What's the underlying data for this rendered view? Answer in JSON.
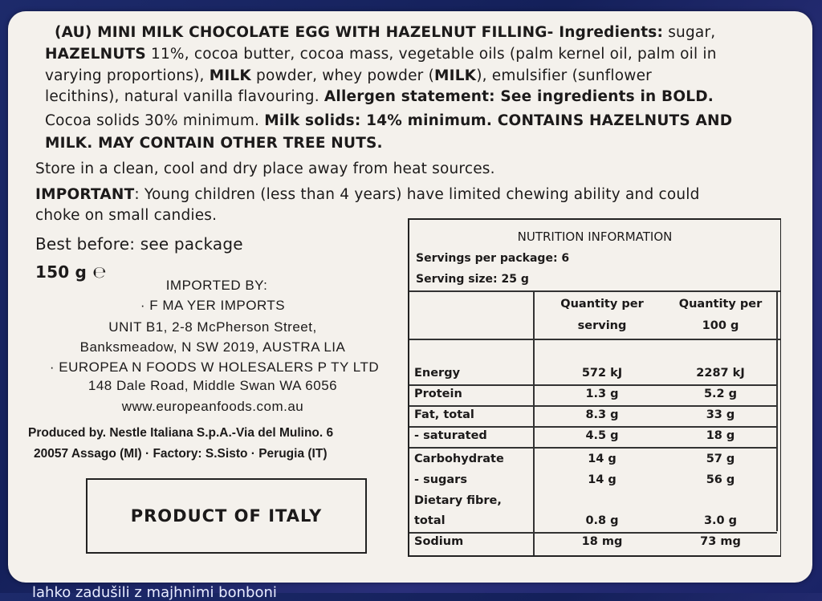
{
  "ingredients_lines": [
    [
      {
        "t": "(AU) MINI MILK CHOCOLATE EGG WITH HAZELNUT FILLING- Ingredients:",
        "b": true
      },
      {
        "t": " sugar,",
        "b": false
      }
    ],
    [
      {
        "t": "HAZELNUTS",
        "b": true
      },
      {
        "t": " 11%, cocoa butter, cocoa mass, vegetable oils (palm kernel oil, palm oil in",
        "b": false
      }
    ],
    [
      {
        "t": "varying proportions), ",
        "b": false
      },
      {
        "t": "MILK",
        "b": true
      },
      {
        "t": " powder, whey powder (",
        "b": false
      },
      {
        "t": "MILK",
        "b": true
      },
      {
        "t": "), emulsifier (sunflower",
        "b": false
      }
    ],
    [
      {
        "t": "lecithins), natural vanilla flavouring. ",
        "b": false
      },
      {
        "t": "Allergen statement: See ingredients in BOLD.",
        "b": true
      }
    ],
    [
      {
        "t": "Cocoa solids 30% minimum. ",
        "b": false
      },
      {
        "t": "Milk solids: 14% minimum. CONTAINS HAZELNUTS AND",
        "b": true
      }
    ],
    [
      {
        "t": "MILK. MAY CONTAIN OTHER TREE NUTS.",
        "b": true
      }
    ],
    [
      {
        "t": "Store in a clean, cool and dry place away from heat sources.",
        "b": false
      }
    ],
    [
      {
        "t": "IMPORTANT",
        "b": true
      },
      {
        "t": ": Young children (less than 4 years) have limited chewing ability and could",
        "b": false
      }
    ],
    [
      {
        "t": "choke on small candies.",
        "b": false
      }
    ],
    [
      {
        "t": "Best before: see package",
        "b": false
      }
    ],
    [
      {
        "t": "150 g ℮",
        "b": true
      }
    ]
  ],
  "importer_lines": [
    "IMPORTED BY:",
    "· F MA YER IMPORTS",
    "UNIT B1, 2-8 McPherson Street,",
    "Banksmeadow, N SW 2019, AUSTRA LIA",
    "· EUROPEA N FOODS W HOLESALERS P TY LTD",
    "148 Dale Road, Middle Swan WA 6056",
    "www.europeanfoods.com.au"
  ],
  "producer_lines": [
    "Produced by. Nestle Italiana S.p.A.-Via del Mulino. 6",
    "20057 Assago (MI) · Factory: S.Sisto · Perugia (IT)"
  ],
  "origin": "PRODUCT OF ITALY",
  "nutrition": {
    "title": "NUTRITION INFORMATION",
    "servings_per_package": "Servings per package: 6",
    "serving_size": "Serving size: 25 g",
    "col_per_serving": [
      "Quantity per",
      "serving"
    ],
    "col_per_100g": [
      "Quantity per",
      "100 g"
    ],
    "rows": [
      {
        "name": "Energy",
        "serving": "572 kJ",
        "per100": "2287 kJ"
      },
      {
        "name": "Protein",
        "serving": "1.3 g",
        "per100": "5.2 g"
      },
      {
        "name": "Fat, total",
        "serving": "8.3 g",
        "per100": "33 g"
      },
      {
        "name": "- saturated",
        "serving": "4.5 g",
        "per100": "18 g"
      },
      {
        "name": "Carbohydrate",
        "serving": "14 g",
        "per100": "57 g"
      },
      {
        "name": "- sugars",
        "serving": "14 g",
        "per100": "56 g"
      },
      {
        "name": "Dietary fibre,",
        "serving": "",
        "per100": ""
      },
      {
        "name": "total",
        "serving": "0.8 g",
        "per100": "3.0 g"
      },
      {
        "name": "Sodium",
        "serving": "18 mg",
        "per100": "73 mg"
      }
    ]
  },
  "package_text_below": "lahko zadušili z majhnimi bonboni"
}
